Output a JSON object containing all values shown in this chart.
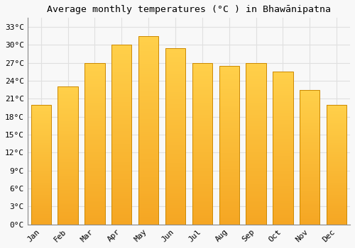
{
  "title": "Average monthly temperatures (°C ) in Bhawānipatna",
  "months": [
    "Jan",
    "Feb",
    "Mar",
    "Apr",
    "May",
    "Jun",
    "Jul",
    "Aug",
    "Sep",
    "Oct",
    "Nov",
    "Dec"
  ],
  "values": [
    20.0,
    23.0,
    27.0,
    30.0,
    31.5,
    29.5,
    27.0,
    26.5,
    27.0,
    25.5,
    22.5,
    20.0
  ],
  "bar_color_top": "#FFD04A",
  "bar_color_bottom": "#F5A623",
  "bar_edge_color": "#CC8800",
  "background_color": "#F8F8F8",
  "grid_color": "#E0E0E0",
  "yticks": [
    0,
    3,
    6,
    9,
    12,
    15,
    18,
    21,
    24,
    27,
    30,
    33
  ],
  "ylim": [
    0,
    34.5
  ],
  "title_fontsize": 9.5,
  "tick_fontsize": 8,
  "bar_width": 0.75
}
